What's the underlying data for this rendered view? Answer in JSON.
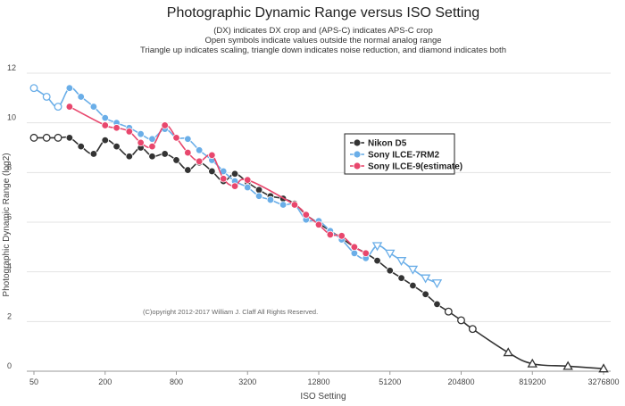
{
  "chart_data": {
    "type": "line",
    "title": "Photographic Dynamic Range versus ISO Setting",
    "subtitle_lines": [
      "(DX) indicates DX crop and (APS-C) indicates APS-C crop",
      "Open symbols indicate values outside the normal analog range",
      "Triangle up indicates scaling, triangle down indicates noise reduction, and diamond indicates both"
    ],
    "xlabel": "ISO Setting",
    "ylabel": "Photographic Dynamic Range (log2)",
    "x_scale": "log2",
    "xlim": [
      50,
      3276800
    ],
    "ylim": [
      0,
      12
    ],
    "x_ticks": [
      50,
      200,
      800,
      3200,
      12800,
      51200,
      204800,
      819200,
      3276800
    ],
    "x_tick_labels": [
      "50",
      "200",
      "800",
      "3200",
      "12800",
      "51200",
      "204800",
      "819200",
      "3276800"
    ],
    "y_ticks": [
      0,
      2,
      4,
      6,
      8,
      10,
      12
    ],
    "y_tick_labels": [
      "0",
      "2",
      "4",
      "6",
      "8",
      "10",
      "12"
    ],
    "grid": "horizontal",
    "legend_position": "right-center",
    "copyright": "(C)opyright 2012-2017 William J. Claff All Rights Reserved.",
    "series": [
      {
        "name": "Nikon D5",
        "color": "#333333",
        "points": [
          {
            "x": 50,
            "y": 9.4,
            "m": "open"
          },
          {
            "x": 64,
            "y": 9.4,
            "m": "open"
          },
          {
            "x": 80,
            "y": 9.4,
            "m": "open"
          },
          {
            "x": 100,
            "y": 9.4,
            "m": "filled"
          },
          {
            "x": 125,
            "y": 9.05,
            "m": "filled"
          },
          {
            "x": 160,
            "y": 8.75,
            "m": "filled"
          },
          {
            "x": 200,
            "y": 9.3,
            "m": "filled"
          },
          {
            "x": 250,
            "y": 9.05,
            "m": "filled"
          },
          {
            "x": 320,
            "y": 8.65,
            "m": "filled"
          },
          {
            "x": 400,
            "y": 9.0,
            "m": "filled"
          },
          {
            "x": 500,
            "y": 8.65,
            "m": "filled"
          },
          {
            "x": 640,
            "y": 8.75,
            "m": "filled"
          },
          {
            "x": 800,
            "y": 8.5,
            "m": "filled"
          },
          {
            "x": 1000,
            "y": 8.1,
            "m": "filled"
          },
          {
            "x": 1250,
            "y": 8.4,
            "m": "filled"
          },
          {
            "x": 1600,
            "y": 8.05,
            "m": "filled"
          },
          {
            "x": 2000,
            "y": 7.65,
            "m": "filled"
          },
          {
            "x": 2500,
            "y": 7.95,
            "m": "filled"
          },
          {
            "x": 3200,
            "y": 7.6,
            "m": "filled"
          },
          {
            "x": 4000,
            "y": 7.3,
            "m": "filled"
          },
          {
            "x": 5000,
            "y": 7.05,
            "m": "filled"
          },
          {
            "x": 6400,
            "y": 6.95,
            "m": "filled"
          },
          {
            "x": 8000,
            "y": 6.75,
            "m": "filled"
          },
          {
            "x": 10000,
            "y": 6.3,
            "m": "filled"
          },
          {
            "x": 12800,
            "y": 5.95,
            "m": "filled"
          },
          {
            "x": 16000,
            "y": 5.65,
            "m": "filled"
          },
          {
            "x": 20000,
            "y": 5.35,
            "m": "filled"
          },
          {
            "x": 25600,
            "y": 5.0,
            "m": "filled"
          },
          {
            "x": 32000,
            "y": 4.75,
            "m": "filled"
          },
          {
            "x": 40000,
            "y": 4.45,
            "m": "filled"
          },
          {
            "x": 51200,
            "y": 4.05,
            "m": "filled"
          },
          {
            "x": 64000,
            "y": 3.75,
            "m": "filled"
          },
          {
            "x": 80000,
            "y": 3.45,
            "m": "filled"
          },
          {
            "x": 102400,
            "y": 3.1,
            "m": "filled"
          },
          {
            "x": 128000,
            "y": 2.7,
            "m": "filled"
          },
          {
            "x": 160000,
            "y": 2.4,
            "m": "open"
          },
          {
            "x": 204800,
            "y": 2.05,
            "m": "open"
          },
          {
            "x": 256000,
            "y": 1.7,
            "m": "open"
          },
          {
            "x": 512000,
            "y": 0.75,
            "m": "tri-up"
          },
          {
            "x": 819200,
            "y": 0.3,
            "m": "tri-up"
          },
          {
            "x": 1638400,
            "y": 0.2,
            "m": "tri-up"
          },
          {
            "x": 3276800,
            "y": 0.1,
            "m": "tri-up"
          }
        ]
      },
      {
        "name": "Sony ILCE-7RM2",
        "color": "#6aaee8",
        "points": [
          {
            "x": 50,
            "y": 11.4,
            "m": "open"
          },
          {
            "x": 64,
            "y": 11.05,
            "m": "open"
          },
          {
            "x": 80,
            "y": 10.65,
            "m": "open"
          },
          {
            "x": 100,
            "y": 11.4,
            "m": "filled"
          },
          {
            "x": 125,
            "y": 11.05,
            "m": "filled"
          },
          {
            "x": 160,
            "y": 10.65,
            "m": "filled"
          },
          {
            "x": 200,
            "y": 10.2,
            "m": "filled"
          },
          {
            "x": 250,
            "y": 10.0,
            "m": "filled"
          },
          {
            "x": 320,
            "y": 9.8,
            "m": "filled"
          },
          {
            "x": 400,
            "y": 9.55,
            "m": "filled"
          },
          {
            "x": 500,
            "y": 9.35,
            "m": "filled"
          },
          {
            "x": 640,
            "y": 9.75,
            "m": "filled"
          },
          {
            "x": 800,
            "y": 9.4,
            "m": "filled"
          },
          {
            "x": 1000,
            "y": 9.35,
            "m": "filled"
          },
          {
            "x": 1250,
            "y": 8.9,
            "m": "filled"
          },
          {
            "x": 1600,
            "y": 8.5,
            "m": "filled"
          },
          {
            "x": 2000,
            "y": 8.05,
            "m": "filled"
          },
          {
            "x": 2500,
            "y": 7.65,
            "m": "filled"
          },
          {
            "x": 3200,
            "y": 7.4,
            "m": "filled"
          },
          {
            "x": 4000,
            "y": 7.05,
            "m": "filled"
          },
          {
            "x": 5000,
            "y": 6.9,
            "m": "filled"
          },
          {
            "x": 6400,
            "y": 6.7,
            "m": "filled"
          },
          {
            "x": 8000,
            "y": 6.7,
            "m": "filled"
          },
          {
            "x": 10000,
            "y": 6.1,
            "m": "filled"
          },
          {
            "x": 12800,
            "y": 6.05,
            "m": "filled"
          },
          {
            "x": 16000,
            "y": 5.65,
            "m": "filled"
          },
          {
            "x": 20000,
            "y": 5.3,
            "m": "filled"
          },
          {
            "x": 25600,
            "y": 4.75,
            "m": "filled"
          },
          {
            "x": 32000,
            "y": 4.55,
            "m": "filled"
          },
          {
            "x": 40000,
            "y": 5.05,
            "m": "tri-down"
          },
          {
            "x": 51200,
            "y": 4.75,
            "m": "tri-down"
          },
          {
            "x": 64000,
            "y": 4.45,
            "m": "tri-down"
          },
          {
            "x": 80000,
            "y": 4.1,
            "m": "tri-down"
          },
          {
            "x": 102400,
            "y": 3.75,
            "m": "tri-down"
          },
          {
            "x": 128000,
            "y": 3.55,
            "m": "tri-down"
          }
        ]
      },
      {
        "name": "Sony ILCE-9(estimate)",
        "color": "#e8476d",
        "points": [
          {
            "x": 100,
            "y": 10.65,
            "m": "filled"
          },
          {
            "x": 200,
            "y": 9.9,
            "m": "filled"
          },
          {
            "x": 250,
            "y": 9.8,
            "m": "filled"
          },
          {
            "x": 320,
            "y": 9.65,
            "m": "filled"
          },
          {
            "x": 400,
            "y": 9.2,
            "m": "filled"
          },
          {
            "x": 500,
            "y": 9.05,
            "m": "filled"
          },
          {
            "x": 640,
            "y": 9.9,
            "m": "filled"
          },
          {
            "x": 800,
            "y": 9.4,
            "m": "filled"
          },
          {
            "x": 1000,
            "y": 8.8,
            "m": "filled"
          },
          {
            "x": 1250,
            "y": 8.45,
            "m": "filled"
          },
          {
            "x": 1600,
            "y": 8.7,
            "m": "filled"
          },
          {
            "x": 2000,
            "y": 7.75,
            "m": "filled"
          },
          {
            "x": 2500,
            "y": 7.45,
            "m": "filled"
          },
          {
            "x": 3200,
            "y": 7.7,
            "m": "filled"
          },
          {
            "x": 8000,
            "y": 6.7,
            "m": "filled"
          },
          {
            "x": 10000,
            "y": 6.3,
            "m": "filled"
          },
          {
            "x": 12800,
            "y": 5.9,
            "m": "filled"
          },
          {
            "x": 16000,
            "y": 5.5,
            "m": "filled"
          },
          {
            "x": 20000,
            "y": 5.45,
            "m": "filled"
          },
          {
            "x": 25600,
            "y": 5.0,
            "m": "filled"
          },
          {
            "x": 32000,
            "y": 4.75,
            "m": "filled"
          }
        ]
      }
    ]
  }
}
